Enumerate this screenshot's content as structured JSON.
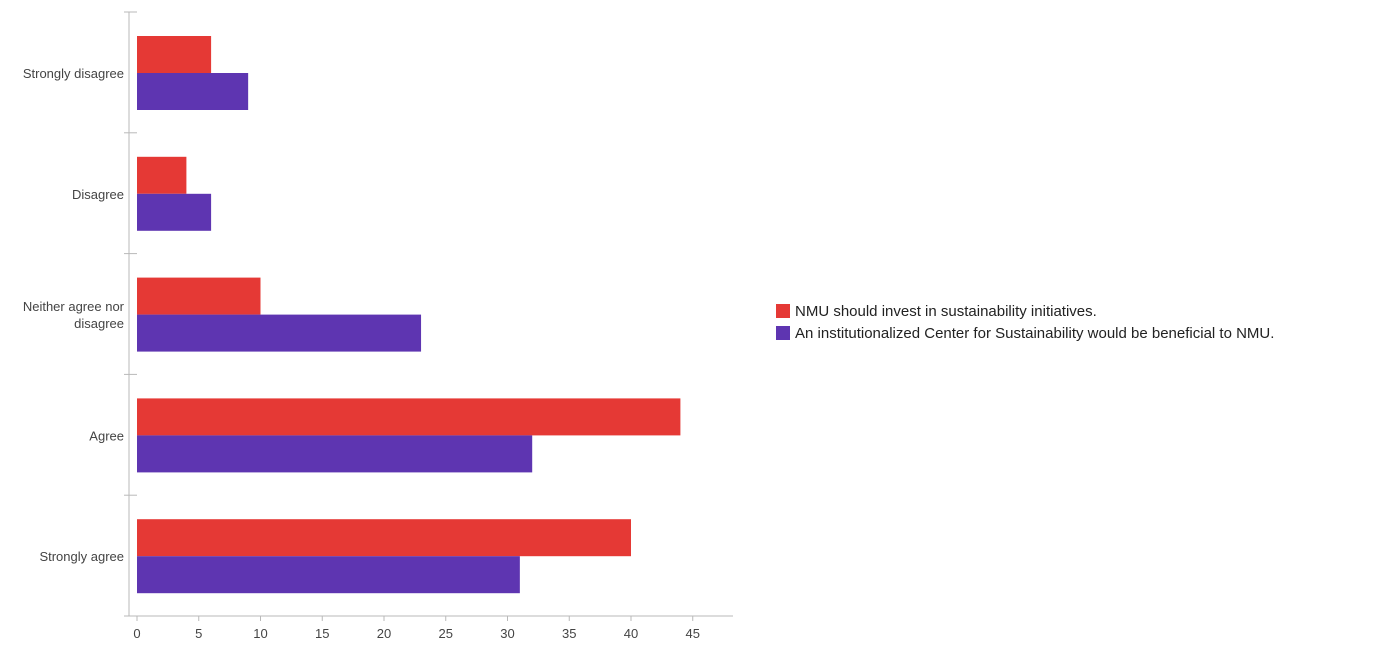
{
  "chart_data": {
    "type": "bar",
    "orientation": "horizontal",
    "categories": [
      "Strongly disagree",
      "Disagree",
      "Neither agree nor disagree",
      "Agree",
      "Strongly agree"
    ],
    "category_label_lines": [
      [
        "Strongly disagree"
      ],
      [
        "Disagree"
      ],
      [
        "Neither agree nor",
        "disagree"
      ],
      [
        "Agree"
      ],
      [
        "Strongly agree"
      ]
    ],
    "series": [
      {
        "name": "NMU should invest in sustainability initiatives.",
        "color": "#e53935",
        "values": [
          6,
          4,
          10,
          44,
          40
        ]
      },
      {
        "name": "An institutionalized Center for Sustainability would be beneficial to NMU.",
        "color": "#5e35b1",
        "values": [
          9,
          6,
          23,
          32,
          31
        ]
      }
    ],
    "xlim": [
      0,
      48
    ],
    "xticks": [
      0,
      5,
      10,
      15,
      20,
      25,
      30,
      35,
      40,
      45
    ],
    "legend_position": "right",
    "grid": false
  }
}
